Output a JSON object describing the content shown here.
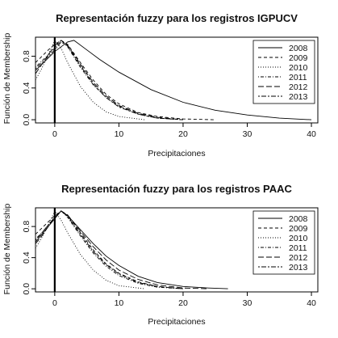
{
  "chart_data": [
    {
      "type": "line",
      "title": "Representación fuzzy para los registros IGPUCV",
      "xlabel": "Precipitaciones",
      "ylabel": "Función de Membership",
      "xlim": [
        -3,
        41
      ],
      "ylim": [
        -0.04,
        1.04
      ],
      "xticks": [
        0,
        10,
        20,
        30,
        40
      ],
      "yticks": [
        0.0,
        0.4,
        0.8
      ],
      "ytick_labels": [
        "0.0",
        "0.4",
        "0.8"
      ],
      "grid": false,
      "legend_position": "top-right",
      "vertical_line_at_x": 0,
      "series": [
        {
          "name": "2008",
          "dash": "solid",
          "x": [
            -3,
            -2,
            -1,
            0,
            1,
            2,
            3,
            5,
            7,
            10,
            15,
            20,
            25,
            30,
            35,
            40
          ],
          "y": [
            0.62,
            0.7,
            0.78,
            0.86,
            0.92,
            0.98,
            1.0,
            0.88,
            0.76,
            0.6,
            0.38,
            0.22,
            0.12,
            0.06,
            0.02,
            0.0
          ]
        },
        {
          "name": "2009",
          "dash": "dashed",
          "x": [
            -3,
            -2,
            -1,
            0,
            1,
            2,
            4,
            6,
            8,
            10,
            13,
            16,
            20,
            25
          ],
          "y": [
            0.72,
            0.8,
            0.88,
            0.95,
            1.0,
            0.95,
            0.72,
            0.5,
            0.32,
            0.2,
            0.09,
            0.04,
            0.01,
            0.0
          ]
        },
        {
          "name": "2010",
          "dash": "dotted",
          "x": [
            -3,
            -2,
            -1,
            0,
            1,
            2,
            4,
            6,
            8,
            10,
            14
          ],
          "y": [
            0.5,
            0.65,
            0.82,
            1.0,
            0.9,
            0.72,
            0.42,
            0.22,
            0.1,
            0.04,
            0.0
          ]
        },
        {
          "name": "2011",
          "dash": "dotdash",
          "x": [
            -3,
            -2,
            -1,
            0,
            1,
            2,
            4,
            6,
            8,
            10,
            13,
            16,
            20
          ],
          "y": [
            0.66,
            0.74,
            0.82,
            0.9,
            1.0,
            0.92,
            0.66,
            0.44,
            0.28,
            0.17,
            0.07,
            0.02,
            0.0
          ]
        },
        {
          "name": "2012",
          "dash": "longdash",
          "x": [
            -3,
            -2,
            -1,
            0,
            1,
            2,
            4,
            6,
            8,
            10,
            13,
            16,
            20
          ],
          "y": [
            0.58,
            0.7,
            0.82,
            0.93,
            1.0,
            0.94,
            0.7,
            0.47,
            0.3,
            0.18,
            0.08,
            0.03,
            0.0
          ]
        },
        {
          "name": "2013",
          "dash": "twodash",
          "x": [
            -3,
            -2,
            -1,
            0,
            1,
            2,
            4,
            6,
            8,
            10,
            13,
            16,
            20
          ],
          "y": [
            0.64,
            0.72,
            0.8,
            0.88,
            0.98,
            0.93,
            0.68,
            0.45,
            0.28,
            0.16,
            0.07,
            0.02,
            0.0
          ]
        }
      ]
    },
    {
      "type": "line",
      "title": "Representación fuzzy para los registros PAAC",
      "xlabel": "Precipitaciones",
      "ylabel": "Función de Membership",
      "xlim": [
        -3,
        41
      ],
      "ylim": [
        -0.04,
        1.04
      ],
      "xticks": [
        0,
        10,
        20,
        30,
        40
      ],
      "yticks": [
        0.0,
        0.4,
        0.8
      ],
      "ytick_labels": [
        "0.0",
        "0.4",
        "0.8"
      ],
      "grid": false,
      "legend_position": "top-right",
      "vertical_line_at_x": 0,
      "series": [
        {
          "name": "2008",
          "dash": "solid",
          "x": [
            -3,
            -2,
            -1,
            0,
            1,
            2,
            4,
            6,
            8,
            10,
            13,
            16,
            20,
            24,
            27
          ],
          "y": [
            0.6,
            0.7,
            0.8,
            0.9,
            1.0,
            0.94,
            0.76,
            0.58,
            0.42,
            0.3,
            0.16,
            0.08,
            0.03,
            0.01,
            0.0
          ]
        },
        {
          "name": "2009",
          "dash": "dashed",
          "x": [
            -3,
            -2,
            -1,
            0,
            1,
            2,
            4,
            6,
            8,
            10,
            13,
            16,
            20
          ],
          "y": [
            0.7,
            0.78,
            0.86,
            0.94,
            1.0,
            0.94,
            0.72,
            0.5,
            0.32,
            0.2,
            0.09,
            0.03,
            0.0
          ]
        },
        {
          "name": "2010",
          "dash": "dotted",
          "x": [
            -3,
            -2,
            -1,
            0,
            1,
            2,
            4,
            6,
            8,
            10,
            14
          ],
          "y": [
            0.52,
            0.66,
            0.82,
            1.0,
            0.88,
            0.72,
            0.44,
            0.24,
            0.11,
            0.04,
            0.0
          ]
        },
        {
          "name": "2011",
          "dash": "dotdash",
          "x": [
            -3,
            -2,
            -1,
            0,
            1,
            2,
            4,
            6,
            8,
            10,
            13,
            16,
            20
          ],
          "y": [
            0.64,
            0.72,
            0.82,
            0.92,
            1.0,
            0.92,
            0.68,
            0.46,
            0.29,
            0.17,
            0.07,
            0.02,
            0.0
          ]
        },
        {
          "name": "2012",
          "dash": "longdash",
          "x": [
            -3,
            -2,
            -1,
            0,
            1,
            2,
            4,
            6,
            8,
            10,
            13,
            16,
            20,
            24
          ],
          "y": [
            0.58,
            0.68,
            0.8,
            0.92,
            1.0,
            0.95,
            0.74,
            0.54,
            0.37,
            0.24,
            0.12,
            0.05,
            0.01,
            0.0
          ]
        },
        {
          "name": "2013",
          "dash": "twodash",
          "x": [
            -3,
            -2,
            -1,
            0,
            1,
            2,
            4,
            6,
            8,
            10,
            13,
            16,
            20
          ],
          "y": [
            0.62,
            0.72,
            0.82,
            0.92,
            1.0,
            0.93,
            0.7,
            0.48,
            0.31,
            0.19,
            0.08,
            0.03,
            0.0
          ]
        }
      ]
    }
  ]
}
